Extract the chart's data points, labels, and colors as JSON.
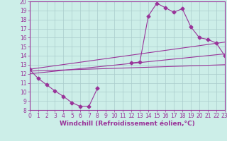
{
  "xlabel": "Windchill (Refroidissement éolien,°C)",
  "xlim": [
    0,
    23
  ],
  "ylim": [
    8,
    20
  ],
  "xticks": [
    0,
    1,
    2,
    3,
    4,
    5,
    6,
    7,
    8,
    9,
    10,
    11,
    12,
    13,
    14,
    15,
    16,
    17,
    18,
    19,
    20,
    21,
    22,
    23
  ],
  "yticks": [
    8,
    9,
    10,
    11,
    12,
    13,
    14,
    15,
    16,
    17,
    18,
    19,
    20
  ],
  "bg_color": "#cceee8",
  "line_color": "#993399",
  "grid_color": "#aacccc",
  "marker": "D",
  "markersize": 2.5,
  "curve1_x": [
    0,
    1,
    2,
    3,
    4,
    5,
    6,
    7,
    8,
    9,
    10,
    11,
    12,
    13,
    14,
    15,
    16,
    17,
    18,
    19,
    20,
    21,
    22,
    23
  ],
  "curve1_y": [
    12.5,
    11.5,
    10.8,
    10.1,
    9.5,
    8.8,
    8.4,
    8.4,
    10.4,
    null,
    null,
    null,
    13.2,
    13.3,
    18.4,
    19.8,
    19.3,
    18.8,
    19.2,
    17.2,
    16.0,
    15.8,
    15.4,
    14.0
  ],
  "line1_x": [
    0,
    23
  ],
  "line1_y": [
    12.5,
    15.5
  ],
  "line2_x": [
    0,
    23
  ],
  "line2_y": [
    12.3,
    13.0
  ],
  "line3_x": [
    0,
    23
  ],
  "line3_y": [
    12.0,
    14.2
  ],
  "font_color": "#993399",
  "tick_fontsize": 5.5,
  "label_fontsize": 6.5
}
